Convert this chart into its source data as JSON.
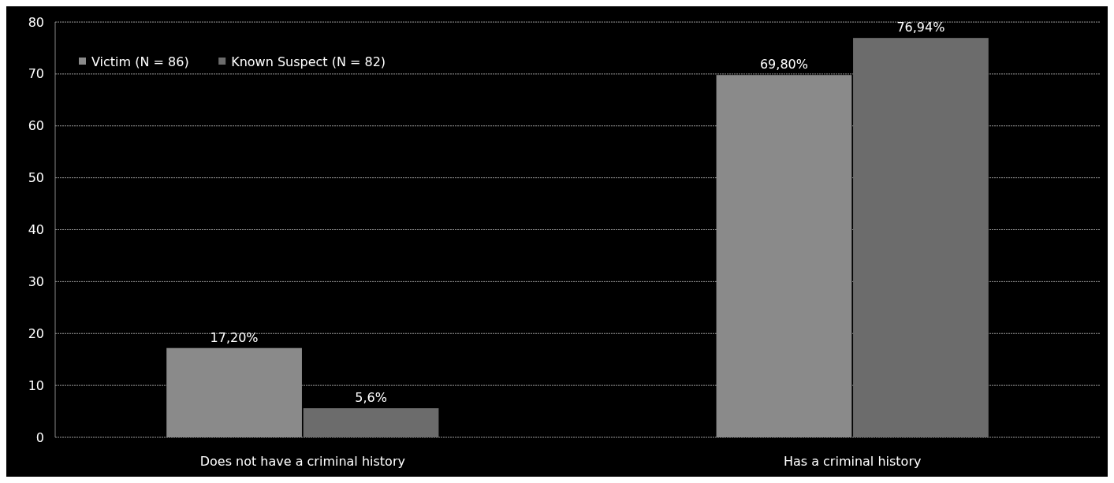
{
  "chart_data": {
    "type": "bar",
    "categories": [
      "Does not have a criminal history",
      "Has a criminal history"
    ],
    "series": [
      {
        "name": "Victim  (N = 86)",
        "color": "#8a8a8a",
        "values": [
          17.2,
          69.8
        ],
        "value_labels": [
          "17,20%",
          "69,80%"
        ]
      },
      {
        "name": "Known Suspect (N = 82)",
        "color": "#6c6c6c",
        "values": [
          5.6,
          76.94
        ],
        "value_labels": [
          "5,6%",
          "76,94%"
        ]
      }
    ],
    "ylim": [
      0,
      80
    ],
    "yticks": [
      0,
      10,
      20,
      30,
      40,
      50,
      60,
      70,
      80
    ],
    "grid": "y",
    "legend": "top left"
  }
}
